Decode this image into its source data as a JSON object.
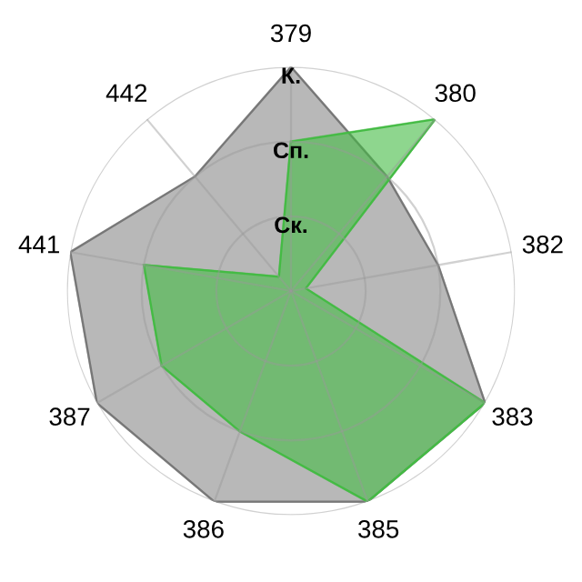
{
  "chart_data": {
    "type": "radar",
    "categories": [
      "379",
      "380",
      "382",
      "383",
      "385",
      "386",
      "387",
      "441",
      "442"
    ],
    "series": [
      {
        "color": "#b8b8b8",
        "values": [
          3,
          2,
          2,
          3,
          3,
          3,
          3,
          3,
          2
        ]
      },
      {
        "color": "#44bb44",
        "values": [
          2,
          3,
          0.2,
          3,
          3,
          2,
          2,
          2,
          0.25
        ]
      }
    ],
    "ylim": [
      0,
      3
    ],
    "yticks": [
      {
        "value": 1,
        "label": "Ск."
      },
      {
        "value": 2,
        "label": "Сп."
      },
      {
        "value": 3,
        "label": "К."
      }
    ],
    "grid": true,
    "legend": false
  }
}
